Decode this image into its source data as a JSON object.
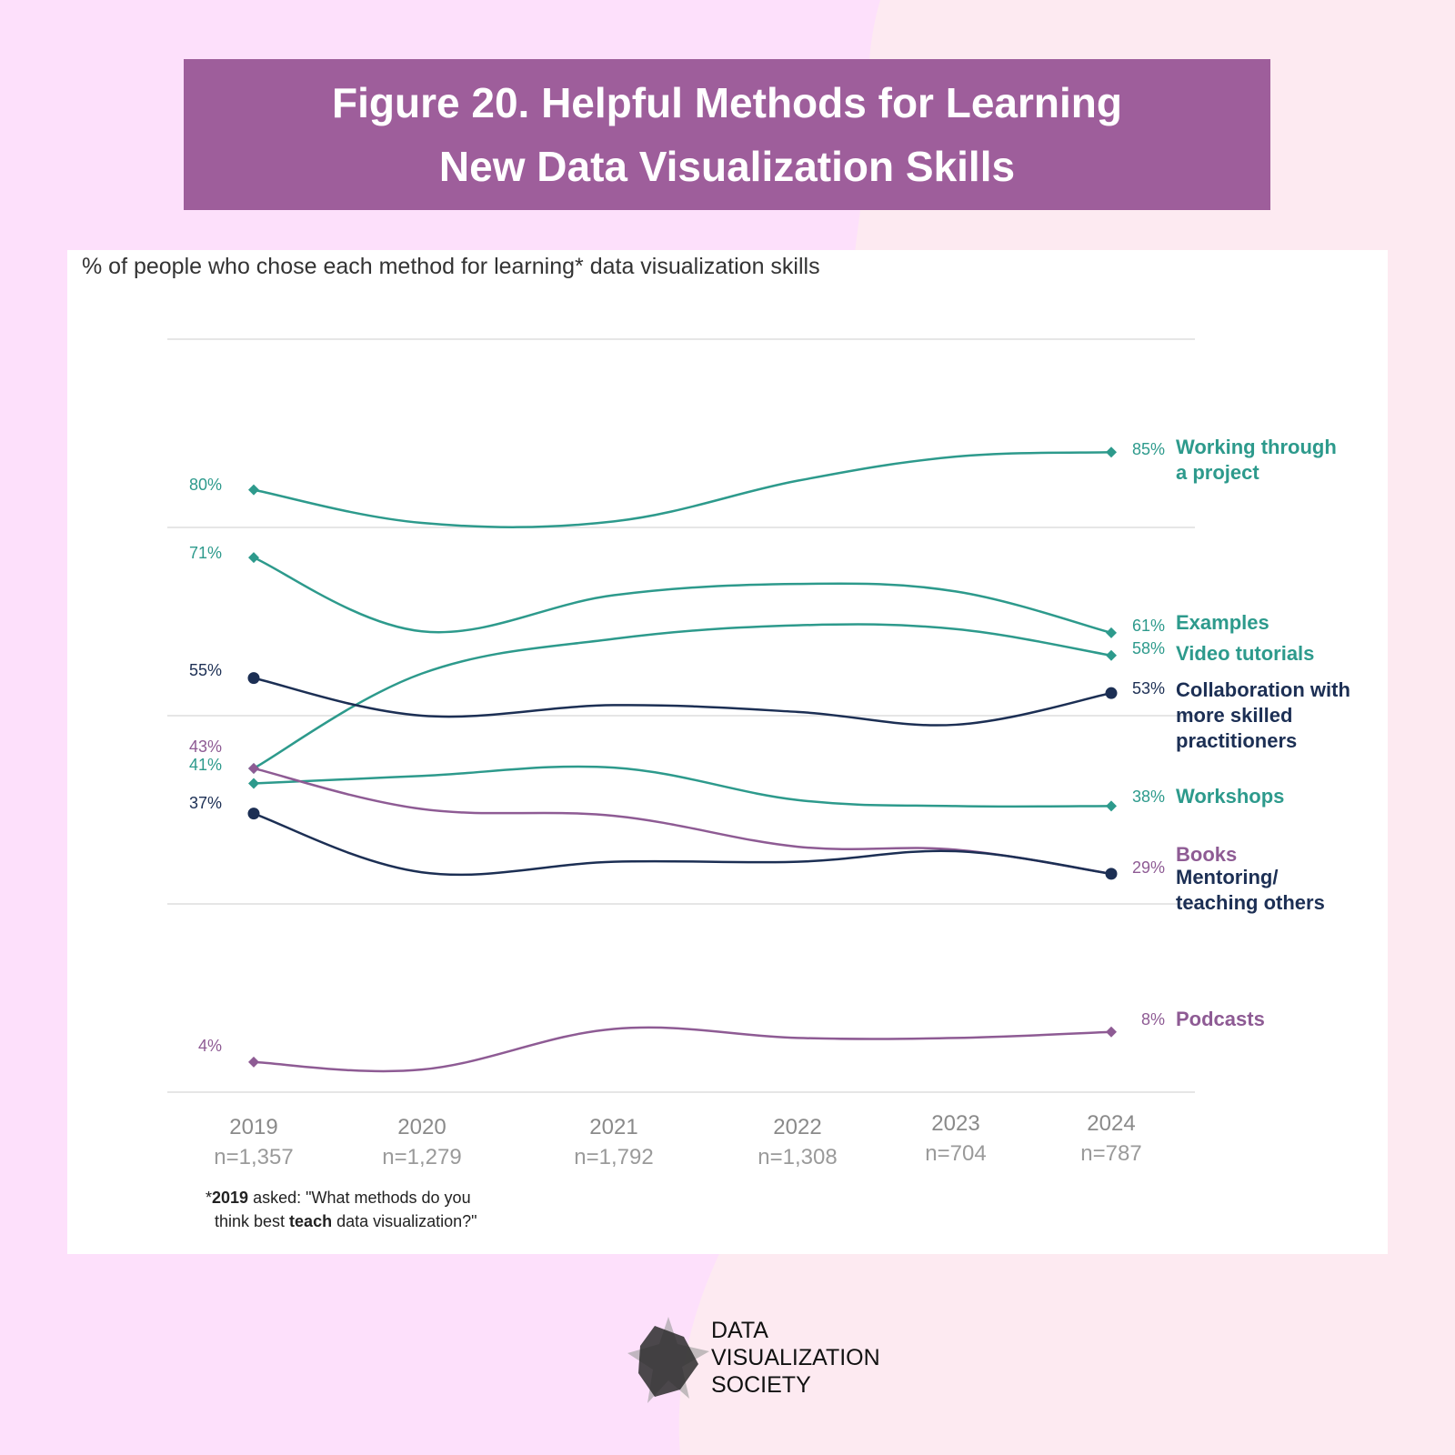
{
  "figure_title": {
    "line1": "Figure 20. Helpful Methods for Learning",
    "line2": "New Data Visualization Skills"
  },
  "colors": {
    "background_pink": "#fde0fb",
    "background_light": "#fdeaf1",
    "banner": "#9e5e9b",
    "teal": "#2d9a8c",
    "navy": "#1c2f54",
    "purple": "#8e5b94",
    "grid": "#e6e6e6"
  },
  "chart_data": {
    "type": "line",
    "title": "% of people who chose each method for learning* data visualization skills",
    "xlabel": "",
    "ylabel": "",
    "ylim": [
      0,
      100
    ],
    "grid_values": [
      0,
      25,
      50,
      75,
      100
    ],
    "categories": [
      "2019",
      "2020",
      "2021",
      "2022",
      "2023",
      "2024"
    ],
    "sample_sizes": [
      "n=1,357",
      "n=1,279",
      "n=1,792",
      "n=1,308",
      "n=704",
      "n=787"
    ],
    "series": [
      {
        "name": "Working through a project",
        "label_lines": [
          "Working through",
          "a project"
        ],
        "color": "teal",
        "marker": "diamond",
        "values": [
          80,
          75.6,
          75.8,
          81.2,
          84.4,
          85
        ],
        "start_label": "80%",
        "end_label": "85%"
      },
      {
        "name": "Examples",
        "label_lines": [
          "Examples"
        ],
        "color": "teal",
        "marker": "diamond",
        "values": [
          71,
          61.2,
          66,
          67.5,
          66.5,
          61
        ],
        "start_label": "71%",
        "end_label": "61%"
      },
      {
        "name": "Video tutorials",
        "label_lines": [
          "Video tutorials"
        ],
        "color": "teal",
        "marker": "diamond",
        "values": [
          43,
          55.6,
          60.2,
          62,
          61.5,
          58
        ],
        "start_label": "",
        "end_label": "58%"
      },
      {
        "name": "Collaboration with more skilled practitioners",
        "label_lines": [
          "Collaboration with",
          "more skilled",
          "practitioners"
        ],
        "color": "navy",
        "marker": "circle",
        "values": [
          55,
          50,
          51.4,
          50.5,
          48.8,
          53
        ],
        "start_label": "55%",
        "end_label": "53%"
      },
      {
        "name": "Workshops",
        "label_lines": [
          "Workshops"
        ],
        "color": "teal",
        "marker": "diamond",
        "values": [
          41,
          42,
          43.1,
          38.8,
          38,
          38
        ],
        "start_label": "41%",
        "end_label": "38%"
      },
      {
        "name": "Books",
        "label_lines": [
          "Books"
        ],
        "color": "purple",
        "marker": "diamond",
        "values": [
          43,
          37.6,
          36.7,
          32.6,
          32.2,
          29
        ],
        "start_label": "43%",
        "end_label": "29%"
      },
      {
        "name": "Mentoring/ teaching others",
        "label_lines": [
          "Mentoring/",
          "teaching others"
        ],
        "color": "navy",
        "marker": "circle",
        "values": [
          37,
          29.2,
          30.6,
          30.6,
          32,
          29
        ],
        "start_label": "37%",
        "end_label": ""
      },
      {
        "name": "Podcasts",
        "label_lines": [
          "Podcasts"
        ],
        "color": "purple",
        "marker": "diamond",
        "values": [
          4,
          3,
          8.4,
          7.2,
          7.2,
          8
        ],
        "start_label": "4%",
        "end_label": "8%"
      }
    ]
  },
  "footnote": {
    "mark": "*",
    "bold1": "2019",
    "text1": " asked: \"What methods do you",
    "text2": "think best ",
    "bold2": "teach",
    "text3": " data visualization?\""
  },
  "logo": {
    "line1": "DATA",
    "line2": "VISUALIZATION",
    "line3": "SOCIETY"
  }
}
